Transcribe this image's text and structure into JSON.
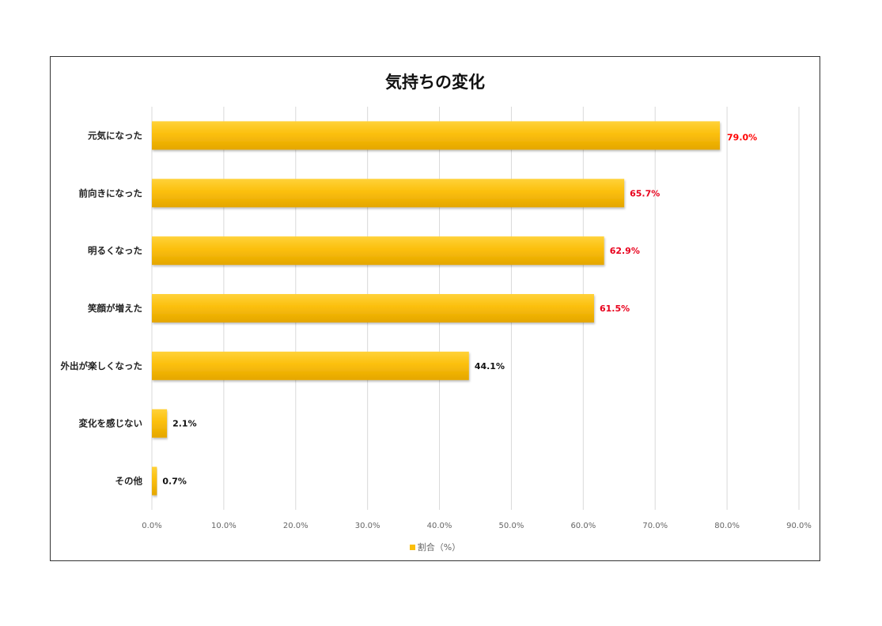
{
  "chart_data": {
    "type": "bar",
    "orientation": "horizontal",
    "title": "気持ちの変化",
    "categories": [
      "元気になった",
      "前向きになった",
      "明るくなった",
      "笑顔が増えた",
      "外出が楽しくなった",
      "変化を感じない",
      "その他"
    ],
    "series": [
      {
        "name": "割合（%）",
        "values": [
          79.0,
          65.7,
          62.9,
          61.5,
          44.1,
          2.1,
          0.7
        ]
      }
    ],
    "data_labels": [
      "79.0%",
      "65.7%",
      "62.9%",
      "61.5%",
      "44.1%",
      "2.1%",
      "0.7%"
    ],
    "label_colors": [
      "#ff0000",
      "#e8001c",
      "#e8001c",
      "#e8001c",
      "#111111",
      "#111111",
      "#111111"
    ],
    "xlim": [
      0,
      90
    ],
    "x_ticks": [
      "0.0%",
      "10.0%",
      "20.0%",
      "30.0%",
      "40.0%",
      "50.0%",
      "60.0%",
      "70.0%",
      "80.0%",
      "90.0%"
    ],
    "grid": true,
    "legend": "bottom",
    "bar_color": "#fbbf0c",
    "bar_color_light": "#ffd23a",
    "bar_color_dark": "#e4a600"
  }
}
